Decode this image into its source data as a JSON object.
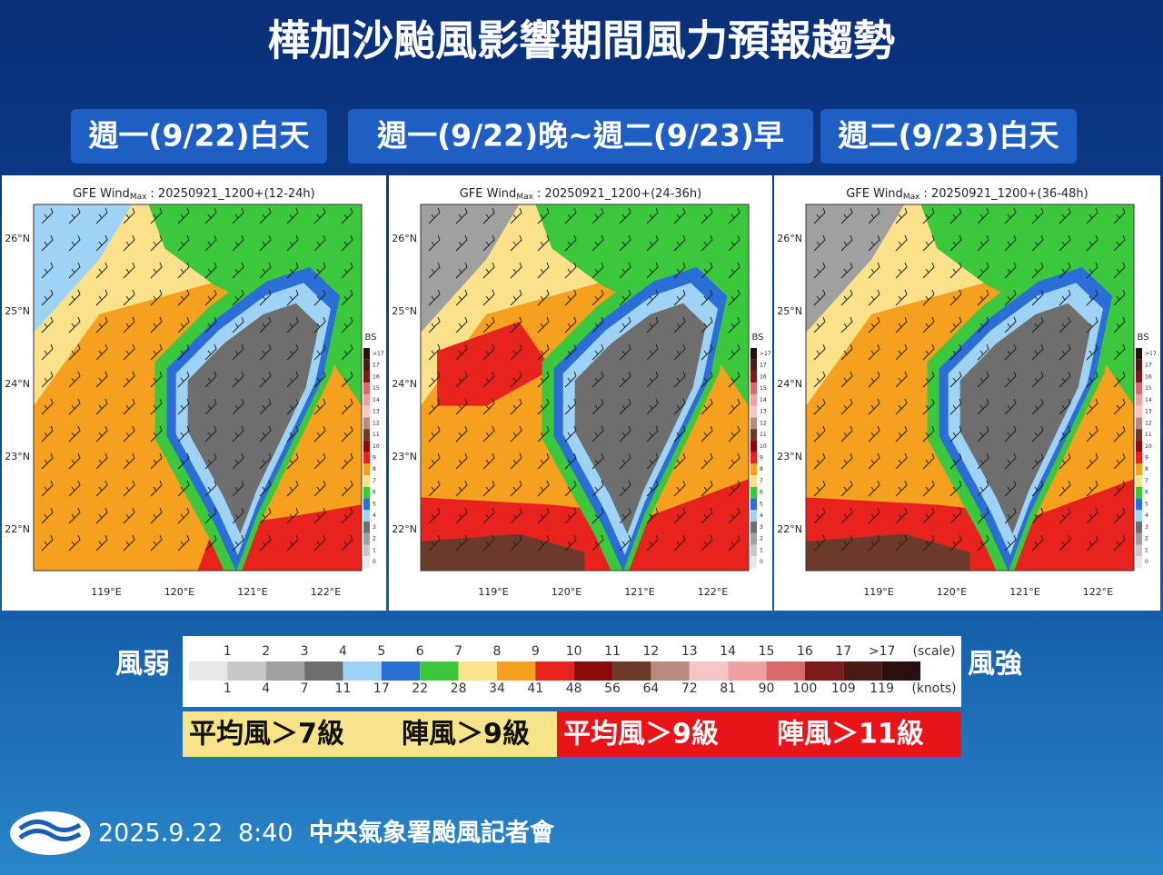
{
  "title": "樺加沙颱風影響期間風力預報趨勢",
  "panels": [
    {
      "header": "週一(9/22)白天",
      "map_title": "GFE Wind",
      "map_title_sub": "Max",
      "map_title_period": ": 20250921_1200+(12-24h)"
    },
    {
      "header": "週一(9/22)晚~週二(9/23)早",
      "map_title": "GFE Wind",
      "map_title_sub": "Max",
      "map_title_period": ": 20250921_1200+(24-36h)"
    },
    {
      "header": "週二(9/23)白天",
      "map_title": "GFE Wind",
      "map_title_sub": "Max",
      "map_title_period": ": 20250921_1200+(36-48h)"
    }
  ],
  "lat_labels": [
    "26°N",
    "25°N",
    "24°N",
    "23°N",
    "22°N"
  ],
  "lon_labels": [
    "119°E",
    "120°E",
    "121°E",
    "122°E"
  ],
  "colorbar": {
    "title": "BS",
    "labels": [
      ">17",
      "17",
      "16",
      "15",
      "14",
      "13",
      "12",
      "11",
      "10",
      "9",
      "8",
      "7",
      "6",
      "5",
      "4",
      "3",
      "2",
      "1",
      "0"
    ]
  },
  "legend": {
    "left": "風弱",
    "right": "風強",
    "scale_labels": [
      "1",
      "2",
      "3",
      "4",
      "5",
      "6",
      "7",
      "8",
      "9",
      "10",
      "11",
      "12",
      "13",
      "14",
      "15",
      "16",
      "17",
      ">17"
    ],
    "scale_unit": "(scale)",
    "knots_labels": [
      "1",
      "4",
      "7",
      "11",
      "17",
      "22",
      "28",
      "34",
      "41",
      "48",
      "56",
      "64",
      "72",
      "81",
      "90",
      "100",
      "109",
      "119"
    ],
    "knots_unit": "(knots)",
    "colors": [
      "#e8e8e8",
      "#c8c8c8",
      "#a0a0a0",
      "#6e6e6e",
      "#9fd3f5",
      "#2b6fd6",
      "#3cc83c",
      "#fbe28a",
      "#f5a01e",
      "#e8231e",
      "#8c0a0a",
      "#6b3a2a",
      "#b88a80",
      "#f7c5c5",
      "#f0a0a0",
      "#d96a6a",
      "#7a1a1a",
      "#4a1a14",
      "#2a0f0f"
    ]
  },
  "thresholds": [
    {
      "mean": "平均風＞7級",
      "gust": "陣風＞9級"
    },
    {
      "mean": "平均風＞9級",
      "gust": "陣風＞11級"
    }
  ],
  "footer": {
    "date": "2025.9.22",
    "time": "8:40",
    "org": "中央氣象署颱風記者會"
  }
}
